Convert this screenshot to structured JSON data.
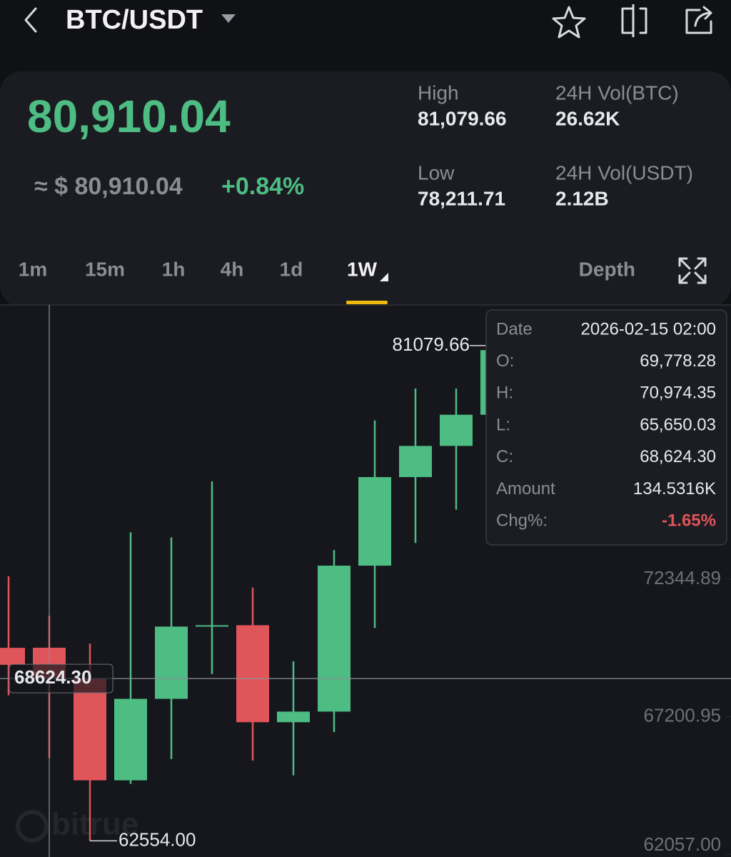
{
  "header": {
    "pair": "BTC/USDT"
  },
  "ticker": {
    "price": "80,910.04",
    "fiat_price": "≈ $ 80,910.04",
    "change": "+0.84%",
    "stats": [
      {
        "label": "High",
        "value": "81,079.66"
      },
      {
        "label": "24H Vol(BTC)",
        "value": "26.62K"
      },
      {
        "label": "Low",
        "value": "78,211.71"
      },
      {
        "label": "24H Vol(USDT)",
        "value": "2.12B"
      }
    ]
  },
  "tabs": {
    "intervals": [
      "1m",
      "15m",
      "1h",
      "4h",
      "1d",
      "1W"
    ],
    "active": 5,
    "depth": "Depth"
  },
  "chart_data": {
    "type": "candlestick",
    "x": [
      null,
      "2026-02-15 02:00",
      null,
      null,
      null,
      null,
      null,
      null,
      null,
      null,
      null,
      null,
      null
    ],
    "open": [
      69774,
      69778.28,
      68624.3,
      64819,
      67866,
      70569,
      70620,
      66992,
      67389,
      72848,
      76161,
      77327,
      78493
    ],
    "high": [
      72450,
      70974.35,
      69933,
      74094,
      73908,
      76002,
      72027,
      69271,
      73431,
      78281,
      79473,
      79473,
      81079.66
    ],
    "low": [
      68000,
      65650.03,
      62554,
      64686,
      65614,
      68794,
      65561,
      65004,
      66621,
      70516,
      73696,
      74942,
      77000
    ],
    "close": [
      69138,
      68624.3,
      64819,
      67866,
      70569,
      70620,
      66992,
      67389,
      72848,
      76161,
      77327,
      78493,
      80910.04
    ],
    "up_color": "#4dbd83",
    "down_color": "#e0555a",
    "ylim": [
      62057,
      82600
    ],
    "yticks": [
      72344.89,
      67200.95,
      {
        "value": 62057,
        "label": "62057.00"
      }
    ],
    "max_label": "81079.66",
    "min_label": "62554.00",
    "crosshair_label": "68624.30",
    "watermark": "bitrue"
  },
  "tooltip": {
    "rows": [
      [
        "Date",
        "2026-02-15 02:00"
      ],
      [
        "O:",
        "69,778.28"
      ],
      [
        "H:",
        "70,974.35"
      ],
      [
        "L:",
        "65,650.03"
      ],
      [
        "C:",
        "68,624.30"
      ],
      [
        "Amount",
        "134.5316K"
      ],
      [
        "Chg%:",
        "-1.65%"
      ]
    ]
  }
}
